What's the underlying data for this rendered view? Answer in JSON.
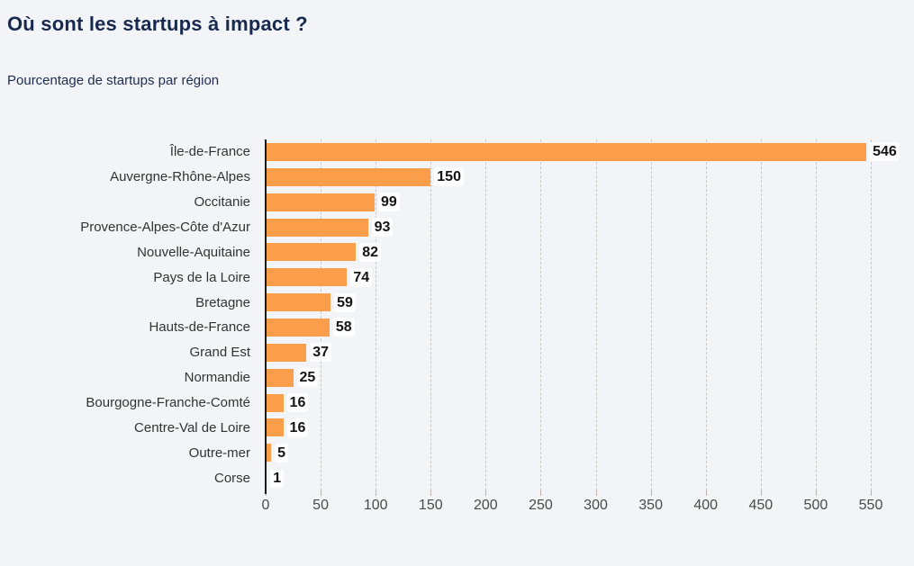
{
  "page": {
    "background": "#f3f4f7"
  },
  "header": {
    "title": "Où sont les startups à impact ?",
    "subtitle": "Pourcentage de startups par région"
  },
  "colors": {
    "bar": "#fa9e4b",
    "title_text": "#17294e",
    "axis_line": "#17181a",
    "gridline": "#cac7c2",
    "background": "#f3f4f7"
  },
  "chart_data": {
    "type": "bar",
    "orientation": "horizontal",
    "title": "Où sont les startups à impact ?",
    "subtitle": "Pourcentage de startups par région",
    "categories": [
      "Île-de-France",
      "Auvergne-Rhône-Alpes",
      "Occitanie",
      "Provence-Alpes-Côte d'Azur",
      "Nouvelle-Aquitaine",
      "Pays de la Loire",
      "Bretagne",
      "Hauts-de-France",
      "Grand Est",
      "Normandie",
      "Bourgogne-Franche-Comté",
      "Centre-Val de Loire",
      "Outre-mer",
      "Corse"
    ],
    "values": [
      546,
      150,
      99,
      93,
      82,
      74,
      59,
      58,
      37,
      25,
      16,
      16,
      5,
      1
    ],
    "xlim": [
      0,
      550
    ],
    "xticks": [
      0,
      50,
      100,
      150,
      200,
      250,
      300,
      350,
      400,
      450,
      500,
      550
    ],
    "grid": "vertical-dashed",
    "legend": "none",
    "bar_color": "#fa9e4b"
  }
}
